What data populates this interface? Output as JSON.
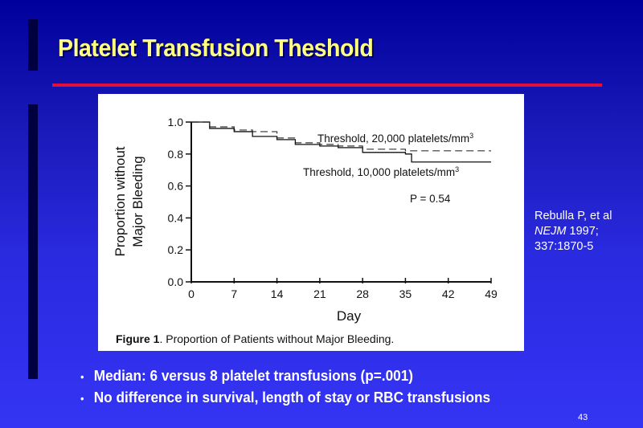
{
  "slide": {
    "title": "Platelet Transfusion Theshold",
    "page_number": "43",
    "colors": {
      "background_top": "#00009c",
      "background_bottom": "#3434f4",
      "title": "#ffff80",
      "rule": "#e0103a",
      "side_bar": "#000040"
    }
  },
  "citation": {
    "line1": "Rebulla P, et al",
    "journal": "NEJM",
    "year": " 1997;",
    "line3": "337:1870-5"
  },
  "bullets": [
    "Median: 6 versus 8 platelet transfusions (p=.001)",
    "No difference in survival, length of stay or RBC transfusions"
  ],
  "chart_data": {
    "type": "line",
    "title": "",
    "caption_bold": "Figure 1",
    "caption_rest": ". Proportion of Patients without Major Bleeding.",
    "xlabel": "Day",
    "ylabel_line1": "Proportion without",
    "ylabel_line2": "Major Bleeding",
    "xlim": [
      0,
      49
    ],
    "ylim": [
      0.0,
      1.0
    ],
    "x_ticks": [
      0,
      7,
      14,
      21,
      28,
      35,
      42,
      49
    ],
    "x_tick_labels": [
      "0",
      "7",
      "14",
      "21",
      "28",
      "35",
      "42",
      "49"
    ],
    "y_ticks": [
      0.0,
      0.2,
      0.4,
      0.6,
      0.8,
      1.0
    ],
    "y_tick_labels": [
      "0.0",
      "0.2",
      "0.4",
      "0.6",
      "0.8",
      "1.0"
    ],
    "grid": false,
    "series": [
      {
        "name": "Threshold, 20,000 platelets/mm³",
        "label_text": "Threshold, 20,000 platelets/mm",
        "style": "dashed",
        "x": [
          0,
          3,
          7,
          10,
          14,
          17,
          21,
          24,
          28,
          35,
          42,
          49
        ],
        "values": [
          1.0,
          0.97,
          0.95,
          0.94,
          0.9,
          0.87,
          0.86,
          0.85,
          0.83,
          0.82,
          0.82,
          0.82
        ]
      },
      {
        "name": "Threshold, 10,000 platelets/mm³",
        "label_text": "Threshold, 10,000 platelets/mm",
        "style": "solid",
        "x": [
          0,
          3,
          7,
          10,
          14,
          17,
          21,
          24,
          28,
          35,
          36,
          42,
          49
        ],
        "values": [
          1.0,
          0.96,
          0.94,
          0.91,
          0.89,
          0.86,
          0.85,
          0.84,
          0.81,
          0.8,
          0.75,
          0.75,
          0.75
        ]
      }
    ],
    "annotations": [
      "P = 0.54"
    ],
    "superscript": "3"
  }
}
